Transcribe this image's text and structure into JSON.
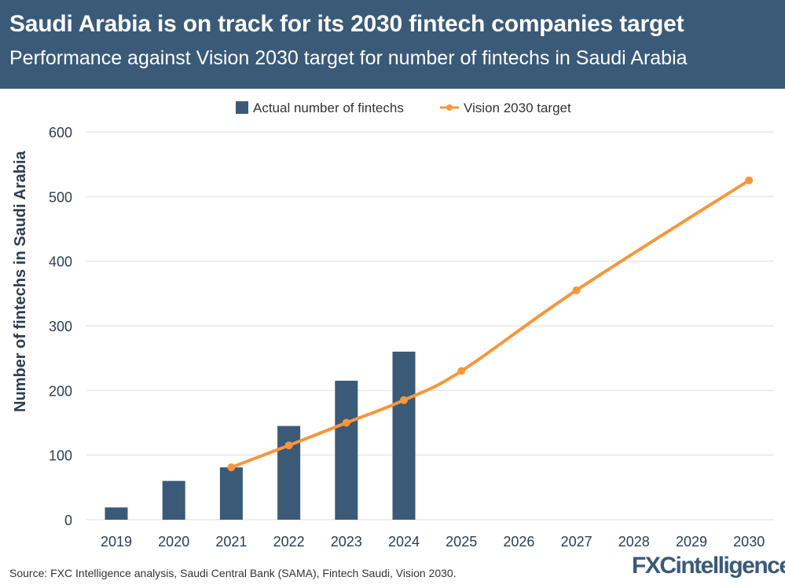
{
  "header": {
    "title": "Saudi Arabia is on track for its 2030 fintech companies target",
    "subtitle": "Performance against Vision 2030 target for number of fintechs in Saudi Arabia"
  },
  "footer": {
    "source": "Source: FXC Intelligence analysis, Saudi Central Bank (SAMA), Fintech Saudi, Vision 2030.",
    "logo": "FXCintelligence"
  },
  "colors": {
    "header_bg": "#3a5a78",
    "bar": "#3a5a78",
    "line": "#f7963b"
  },
  "chart_data": {
    "type": "bar+line",
    "title": "",
    "ylabel": "Number of fintechs in Saudi Arabia",
    "xlabel": "",
    "ylim": [
      0,
      600
    ],
    "yticks": [
      0,
      100,
      200,
      300,
      400,
      500,
      600
    ],
    "grid": true,
    "legend_position": "top",
    "categories": [
      "2019",
      "2020",
      "2021",
      "2022",
      "2023",
      "2024",
      "2025",
      "2026",
      "2027",
      "2028",
      "2029",
      "2030"
    ],
    "series": [
      {
        "name": "Actual number of fintechs",
        "type": "bar",
        "values": [
          19,
          60,
          81,
          145,
          215,
          260,
          null,
          null,
          null,
          null,
          null,
          null
        ]
      },
      {
        "name": "Vision 2030 target",
        "type": "line",
        "values": [
          null,
          null,
          81,
          115,
          150,
          185,
          230,
          null,
          355,
          null,
          null,
          525
        ]
      }
    ]
  }
}
